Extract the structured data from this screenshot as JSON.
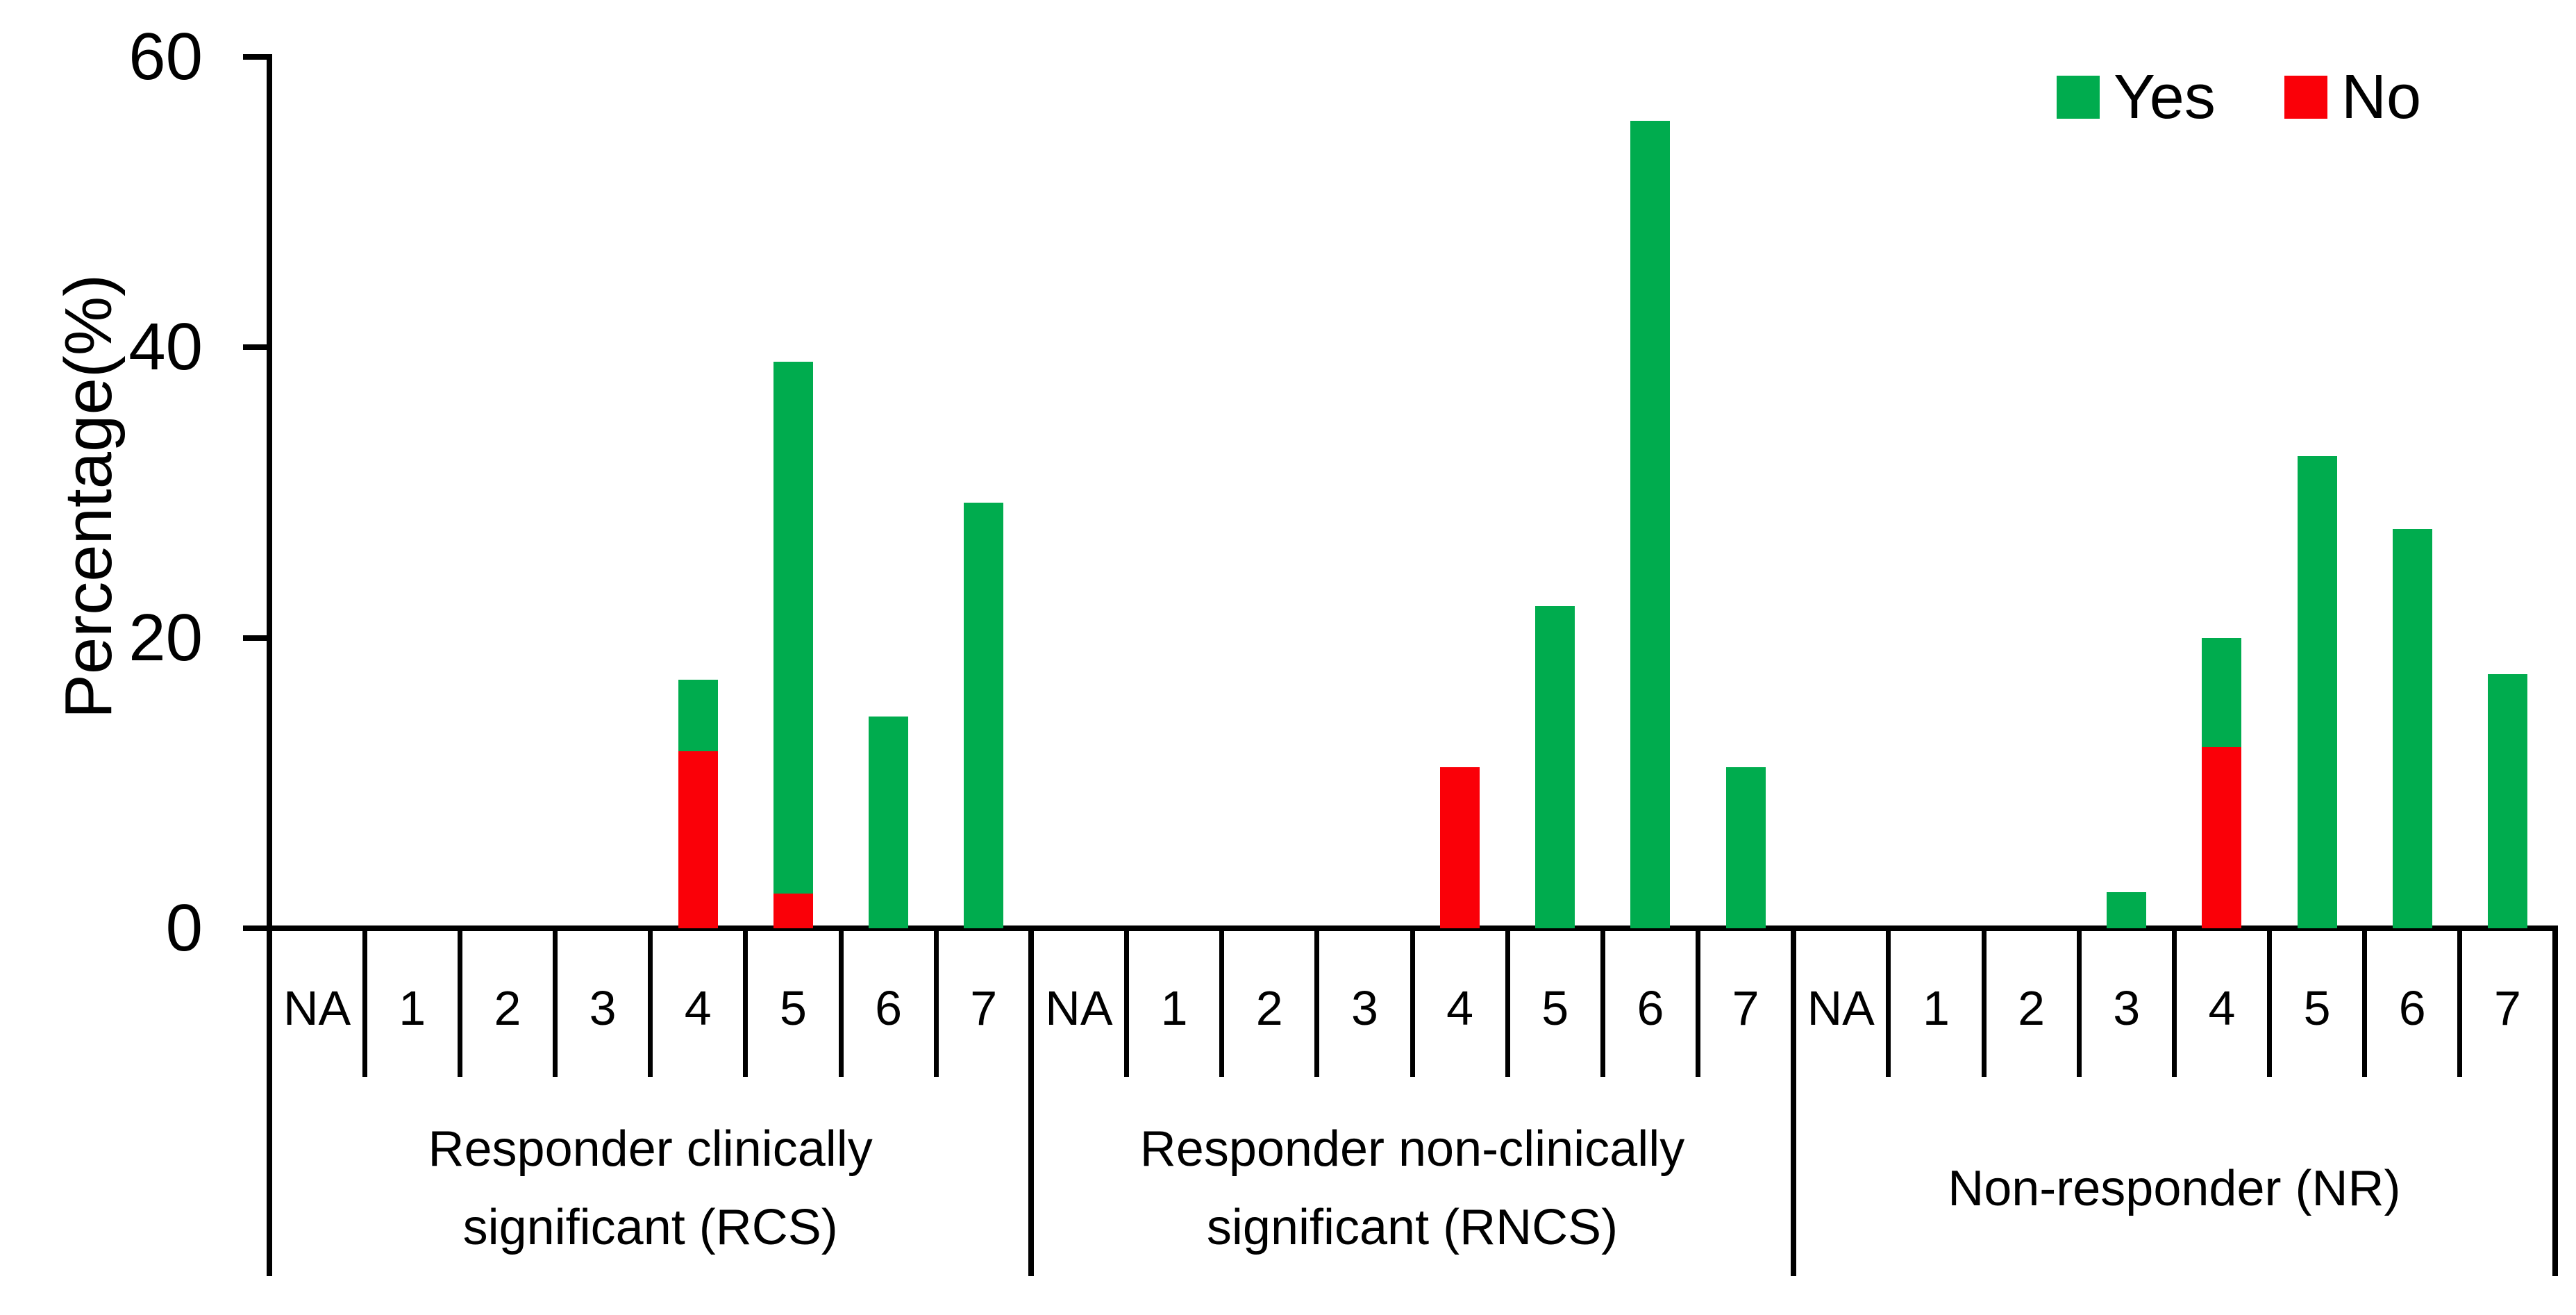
{
  "chart_data": {
    "type": "bar",
    "stacked": true,
    "ylabel": "Percentage(%)",
    "ylim": [
      0,
      60
    ],
    "yticks": [
      60,
      40,
      20,
      0
    ],
    "grid": false,
    "legend_position": "top-right",
    "categories": [
      "NA",
      "1",
      "2",
      "3",
      "4",
      "5",
      "6",
      "7"
    ],
    "groups": [
      {
        "label_lines": [
          "Responder clinically",
          "significant (RCS)"
        ],
        "series": [
          {
            "name": "Yes",
            "values": [
              0,
              0,
              0,
              0,
              4.9,
              36.6,
              14.6,
              29.3
            ]
          },
          {
            "name": "No",
            "values": [
              0,
              0,
              0,
              0,
              12.2,
              2.4,
              0,
              0
            ]
          }
        ]
      },
      {
        "label_lines": [
          "Responder non-clinically",
          "significant (RNCS)"
        ],
        "series": [
          {
            "name": "Yes",
            "values": [
              0,
              0,
              0,
              0,
              0,
              22.2,
              55.6,
              11.1
            ]
          },
          {
            "name": "No",
            "values": [
              0,
              0,
              0,
              0,
              11.1,
              0,
              0,
              0
            ]
          }
        ]
      },
      {
        "label_lines": [
          "Non-responder (NR)"
        ],
        "series": [
          {
            "name": "Yes",
            "values": [
              0,
              0,
              0,
              2.5,
              7.5,
              32.5,
              27.5,
              17.5
            ]
          },
          {
            "name": "No",
            "values": [
              0,
              0,
              0,
              0,
              12.5,
              0,
              0,
              0
            ]
          }
        ]
      }
    ],
    "legend": [
      {
        "label": "Yes",
        "color": "#00AC4E"
      },
      {
        "label": "No",
        "color": "#FA0008"
      }
    ]
  },
  "colors": {
    "yes": "#00AC4E",
    "no": "#FA0008",
    "axis": "#000000",
    "background": "#ffffff"
  }
}
